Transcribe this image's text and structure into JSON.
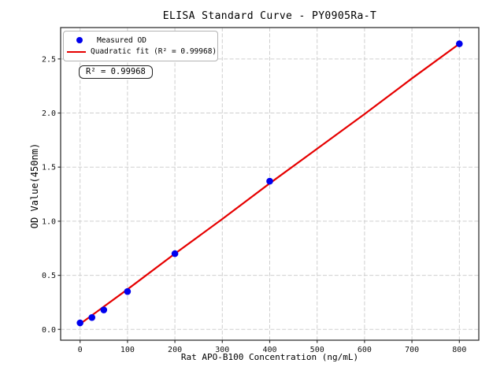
{
  "figure": {
    "background": "#ffffff"
  },
  "chart_data": {
    "type": "scatter",
    "title": "ELISA Standard Curve - PY0905Ra-T",
    "xlabel": "Rat APO-B100 Concentration (ng/mL)",
    "ylabel": "OD Value(450nm)",
    "xlim": [
      -41,
      841
    ],
    "ylim": [
      -0.1,
      2.79
    ],
    "grid": true,
    "x_ticks": [
      {
        "v": 0,
        "label": "0"
      },
      {
        "v": 100,
        "label": "100"
      },
      {
        "v": 200,
        "label": "200"
      },
      {
        "v": 300,
        "label": "300"
      },
      {
        "v": 400,
        "label": "400"
      },
      {
        "v": 500,
        "label": "500"
      },
      {
        "v": 600,
        "label": "600"
      },
      {
        "v": 700,
        "label": "700"
      },
      {
        "v": 800,
        "label": "800"
      }
    ],
    "y_ticks": [
      {
        "v": 0.0,
        "label": "0.0"
      },
      {
        "v": 0.5,
        "label": "0.5"
      },
      {
        "v": 1.0,
        "label": "1.0"
      },
      {
        "v": 1.5,
        "label": "1.5"
      },
      {
        "v": 2.0,
        "label": "2.0"
      },
      {
        "v": 2.5,
        "label": "2.5"
      }
    ],
    "series": [
      {
        "name": "Measured OD",
        "kind": "scatter",
        "color": "#0000ee",
        "x": [
          0,
          25,
          50,
          100,
          200,
          400,
          800
        ],
        "y": [
          0.06,
          0.11,
          0.18,
          0.35,
          0.7,
          1.37,
          2.64
        ]
      },
      {
        "name": "Quadratic fit",
        "kind": "line",
        "color": "#e60000",
        "x": [
          0,
          100,
          200,
          300,
          400,
          500,
          600,
          700,
          800
        ],
        "y": [
          0.05,
          0.37,
          0.7,
          1.02,
          1.35,
          1.67,
          1.99,
          2.32,
          2.64
        ]
      }
    ],
    "legend": {
      "position": "upper-left",
      "items": [
        {
          "label": "Measured OD",
          "marker": "dot",
          "color": "#0000ee"
        },
        {
          "label": "Quadratic fit (R² = 0.99968)",
          "marker": "line",
          "color": "#e60000"
        }
      ]
    },
    "annotation": "R² = 0.99968",
    "r_squared": 0.99968
  },
  "colors": {
    "grid": "#cfcfcf",
    "spine": "#333333",
    "scatter": "#0000ee",
    "fit_line": "#e60000",
    "text": "#000000"
  }
}
